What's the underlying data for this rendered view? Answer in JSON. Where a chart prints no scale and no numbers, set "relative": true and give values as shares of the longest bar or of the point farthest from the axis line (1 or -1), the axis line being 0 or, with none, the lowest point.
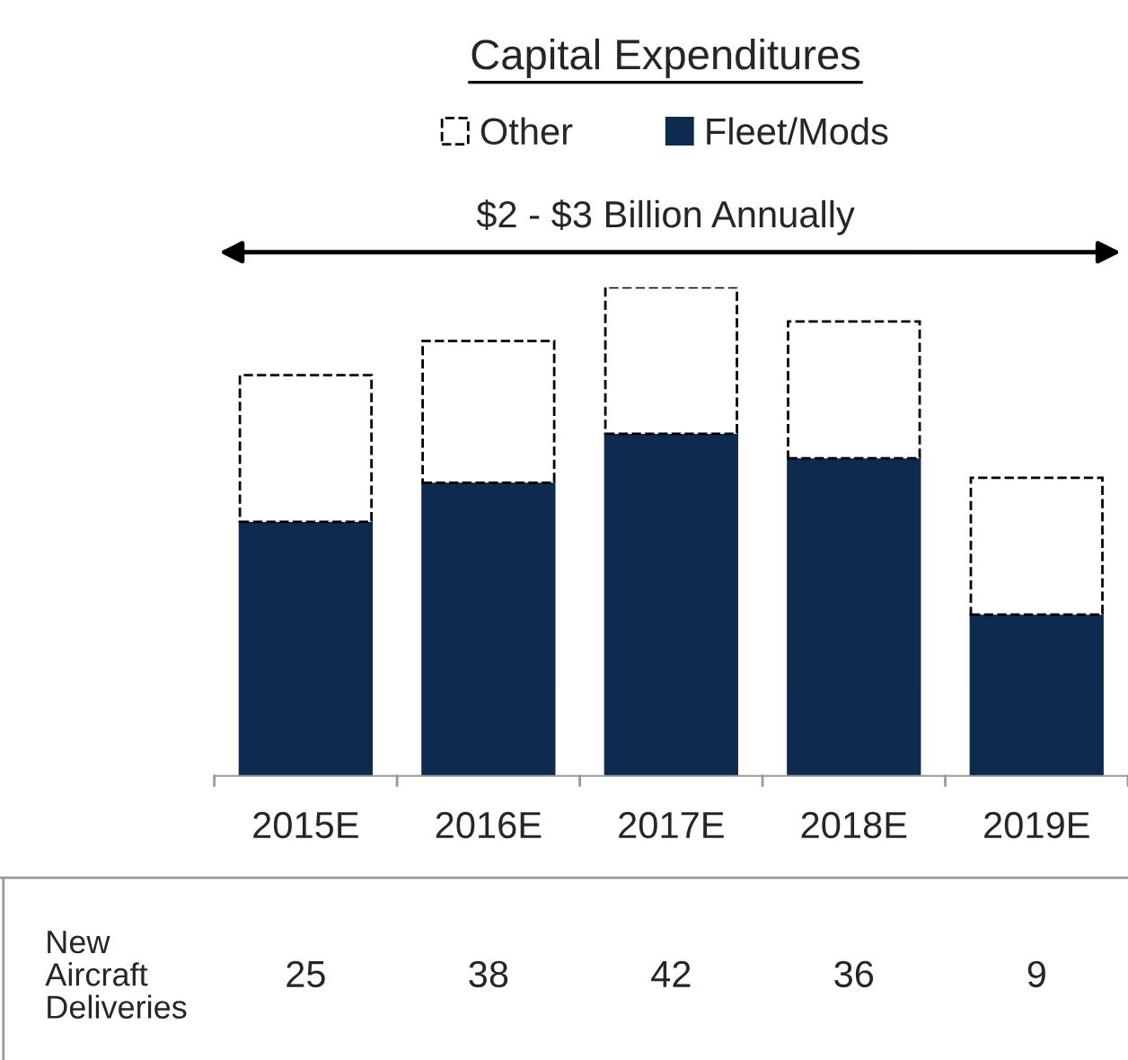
{
  "chart_data": {
    "type": "bar",
    "title": "Capital Expenditures",
    "categories": [
      "2015E",
      "2016E",
      "2017E",
      "2018E",
      "2019E"
    ],
    "stacked": true,
    "relative": true,
    "legend": "top",
    "grid": false,
    "series": [
      {
        "name": "Fleet/Mods",
        "color": "#0f2a4f",
        "values": [
          0.52,
          0.6,
          0.7,
          0.65,
          0.33
        ]
      },
      {
        "name": "Other",
        "color": "#ffffff",
        "line_style": "dashed",
        "values": [
          0.3,
          0.29,
          0.3,
          0.28,
          0.28
        ]
      }
    ],
    "annotations": [
      "$2 - $3 Billion Annually",
      "New\nAircraft\nDeliveries",
      "25",
      "38",
      "42",
      "36",
      "9"
    ]
  }
}
